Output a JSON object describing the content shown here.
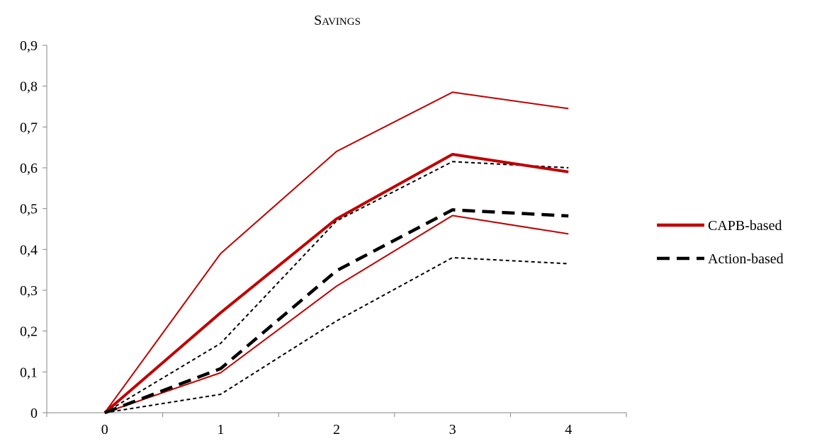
{
  "chart_data": {
    "type": "line",
    "title": "SAVINGS",
    "xlabel": "",
    "ylabel": "",
    "x": [
      0,
      1,
      2,
      3,
      4
    ],
    "ylim": [
      0,
      0.9
    ],
    "yticks": [
      "0",
      "0,1",
      "0,2",
      "0,3",
      "0,4",
      "0,5",
      "0,6",
      "0,7",
      "0,8",
      "0,9"
    ],
    "xticks": [
      "0",
      "1",
      "2",
      "3",
      "4"
    ],
    "grid": false,
    "legend_position": "right",
    "series": [
      {
        "name": "CAPB-based",
        "role": "main",
        "color": "#c00000",
        "style": "solid",
        "values": [
          0,
          0.245,
          0.475,
          0.633,
          0.59
        ]
      },
      {
        "name": "",
        "role": "upper",
        "color": "#c00000",
        "style": "solid",
        "values": [
          0,
          0.39,
          0.64,
          0.785,
          0.745
        ]
      },
      {
        "name": "",
        "role": "lower",
        "color": "#c00000",
        "style": "solid",
        "values": [
          0,
          0.098,
          0.31,
          0.483,
          0.438
        ]
      },
      {
        "name": "Action-based",
        "role": "main",
        "color": "#000000",
        "style": "dashed",
        "values": [
          0,
          0.108,
          0.348,
          0.497,
          0.482
        ]
      },
      {
        "name": "",
        "role": "upper",
        "color": "#000000",
        "style": "dashed",
        "values": [
          0,
          0.17,
          0.47,
          0.615,
          0.6
        ]
      },
      {
        "name": "",
        "role": "lower",
        "color": "#000000",
        "style": "dashed",
        "values": [
          0,
          0.045,
          0.225,
          0.38,
          0.365
        ]
      }
    ]
  }
}
